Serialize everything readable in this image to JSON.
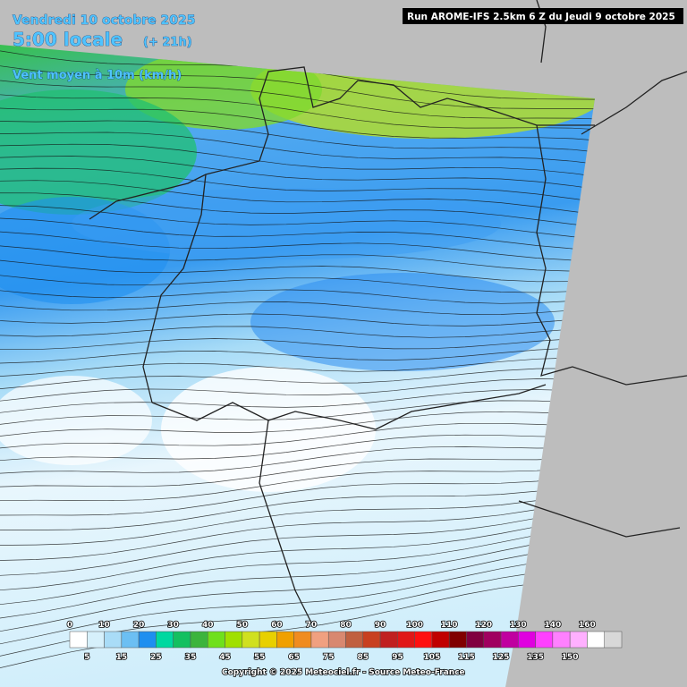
{
  "header": {
    "date": "Vendredi 10 octobre 2025",
    "time": "5:00 locale",
    "lead": "(+ 21h)",
    "variable": "Vent moyen à 10m (km/h)",
    "run": "Run AROME-IFS 2.5km 6 Z du Jeudi 9 octobre 2025"
  },
  "legend": {
    "colors": [
      "#ffffff",
      "#d6f0fb",
      "#a9dcf7",
      "#6cbff3",
      "#1e8ff0",
      "#00d8a0",
      "#14c060",
      "#3cb43c",
      "#6fe01c",
      "#a0e000",
      "#d0e020",
      "#e8d000",
      "#f0a000",
      "#f08c20",
      "#f0a080",
      "#d88870",
      "#c06040",
      "#c84020",
      "#c02020",
      "#e01818",
      "#ff1010",
      "#c00000",
      "#800000",
      "#800040",
      "#a00060",
      "#c000a0",
      "#e000e0",
      "#ff40ff",
      "#ff80ff",
      "#ffb0ff",
      "#ffffff",
      "#d8d8d8"
    ],
    "top_labels": [
      "0",
      "10",
      "20",
      "30",
      "40",
      "50",
      "60",
      "70",
      "80",
      "90",
      "100",
      "110",
      "120",
      "130",
      "140",
      "160"
    ],
    "bottom_labels": [
      "5",
      "15",
      "25",
      "35",
      "45",
      "55",
      "65",
      "75",
      "85",
      "95",
      "105",
      "115",
      "125",
      "135",
      "150"
    ]
  },
  "footer": {
    "copyright": "Copyright © 2025 Meteociel.fr - Source Meteo-France"
  }
}
